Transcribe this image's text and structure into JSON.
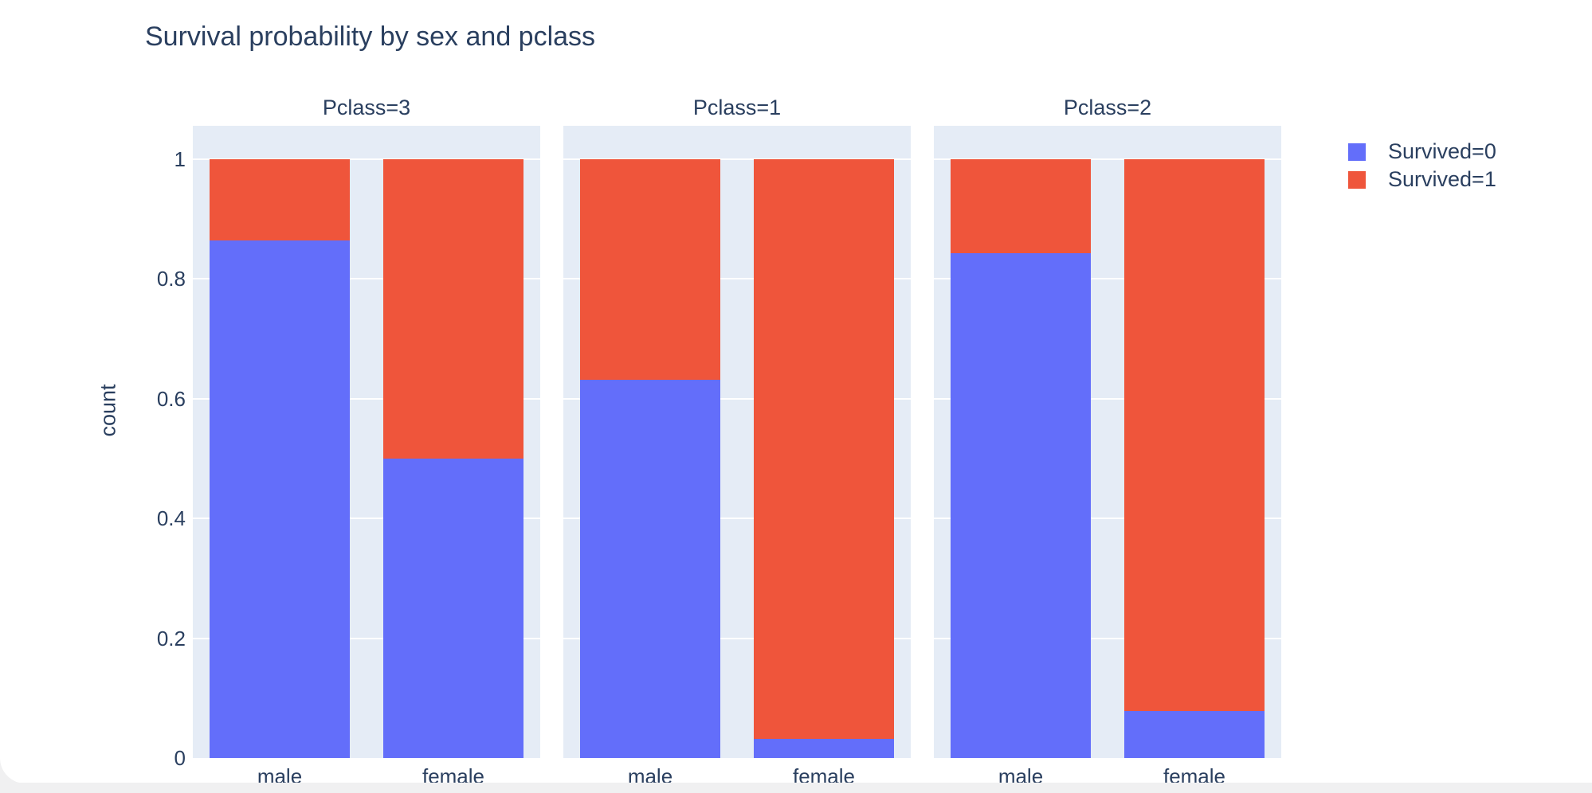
{
  "page": {
    "background": "#ffffff",
    "bottom_bar_color": "#f0f0f1"
  },
  "chart_data": {
    "type": "bar",
    "barmode": "stack",
    "barnorm": "fraction",
    "title": "Survival probability by sex and pclass",
    "xlabel": "",
    "ylabel": "count",
    "ylim": [
      0,
      1
    ],
    "yticks": [
      "0",
      "0.2",
      "0.4",
      "0.6",
      "0.8",
      "1"
    ],
    "categories": [
      "male",
      "female"
    ],
    "facets": [
      {
        "label": "Pclass=3",
        "series": [
          {
            "name": "Survived=0",
            "values": [
              0.865,
              0.5
            ]
          },
          {
            "name": "Survived=1",
            "values": [
              0.135,
              0.5
            ]
          }
        ]
      },
      {
        "label": "Pclass=1",
        "series": [
          {
            "name": "Survived=0",
            "values": [
              0.632,
              0.032
            ]
          },
          {
            "name": "Survived=1",
            "values": [
              0.368,
              0.968
            ]
          }
        ]
      },
      {
        "label": "Pclass=2",
        "series": [
          {
            "name": "Survived=0",
            "values": [
              0.843,
              0.079
            ]
          },
          {
            "name": "Survived=1",
            "values": [
              0.157,
              0.921
            ]
          }
        ]
      }
    ],
    "legend": {
      "position": "top-right",
      "entries": [
        {
          "label": "Survived=0",
          "color": "#636EFA"
        },
        {
          "label": "Survived=1",
          "color": "#EF553B"
        }
      ]
    },
    "plot_bgcolor": "#E5ECF6",
    "gridcolor": "#FFFFFF",
    "text_color": "#2a3f5f",
    "grid_on": true,
    "legend_on": true
  }
}
